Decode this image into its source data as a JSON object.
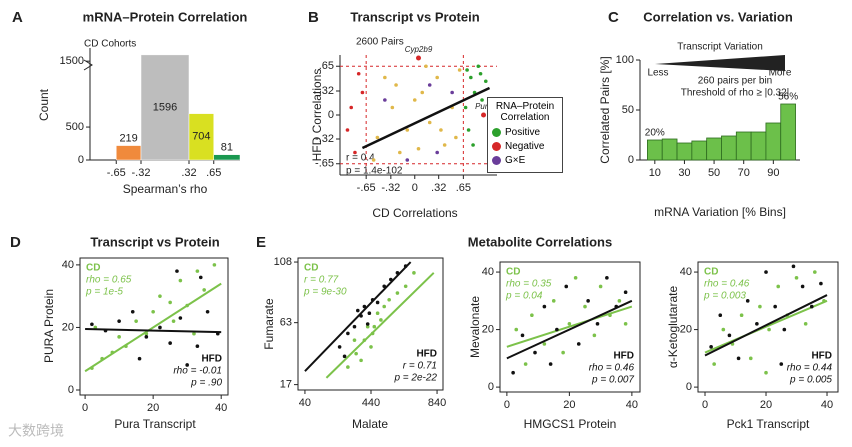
{
  "figure": {
    "panel_labels": [
      "A",
      "B",
      "C",
      "D",
      "E"
    ],
    "group_title": "Metabolite Correlations",
    "watermark": "大数跨境"
  },
  "chart_data": [
    {
      "type": "histogram",
      "title": "mRNA–Protein Correlation",
      "xlabel": "Spearman’s rho",
      "ylabel": "Count",
      "annotations": [
        "CD Cohorts"
      ],
      "bins": [
        -0.65,
        -0.32,
        0.32,
        0.65,
        1.0
      ],
      "values": [
        219,
        1596,
        704,
        81
      ],
      "colors": [
        "#f08a3c",
        "#bdbdbd",
        "#d9e021",
        "#1a9850"
      ],
      "xlim": [
        -1,
        1
      ],
      "xticks": [
        {
          "value": -0.65,
          "label": "-.65"
        },
        {
          "value": -0.32,
          "label": "-.32"
        },
        {
          "value": 0.32,
          "label": ".32"
        },
        {
          "value": 0.65,
          "label": ".65"
        }
      ],
      "ylim": [
        0,
        1700
      ],
      "yticks": [
        0,
        500,
        1500
      ]
    },
    {
      "type": "scatter",
      "title": "Transcript vs Protein",
      "xlabel": "CD Correlations",
      "ylabel": "HFD Correlations",
      "annotations": [
        "2600 Pairs",
        "r = 0.4",
        "p = 1.4e-102"
      ],
      "legend_title": "RNA–Protein Correlation",
      "point_labels": [
        {
          "text": "Cyp2b9",
          "x": 0.05,
          "y": 0.76
        },
        {
          "text": "Pura",
          "x": 0.92,
          "y": 0.0
        }
      ],
      "series": [
        {
          "name": "Positive",
          "color": "#2ca02c",
          "x": [
            0.7,
            0.8,
            0.75,
            0.68,
            0.85,
            0.9,
            0.72,
            0.95,
            0.78,
            0.88
          ],
          "values": [
            0.6,
            0.3,
            0.5,
            0.1,
            0.65,
            0.2,
            -0.2,
            0.45,
            -0.4,
            0.55
          ]
        },
        {
          "name": "Negative",
          "color": "#d62728",
          "x": [
            -0.7,
            -0.8,
            -0.75,
            -0.9,
            0.92,
            -0.85
          ],
          "values": [
            0.3,
            -0.5,
            0.55,
            -0.2,
            0.0,
            0.1
          ]
        },
        {
          "name": "G×E",
          "color": "#6a3d9a",
          "x": [
            0.3,
            -0.4,
            0.5,
            -0.1,
            0.2
          ],
          "values": [
            -0.5,
            0.2,
            0.3,
            -0.6,
            0.4
          ]
        },
        {
          "color": "#e0b84a",
          "x": [
            -0.5,
            -0.3,
            -0.1,
            0.1,
            0.3,
            0.5,
            -0.4,
            -0.2,
            0.0,
            0.2,
            0.4,
            0.6,
            -0.55,
            0.15,
            0.35,
            -0.25,
            0.55,
            0.05
          ],
          "values": [
            -0.3,
            0.1,
            -0.2,
            0.3,
            0.5,
            0.1,
            0.5,
            -0.5,
            0.2,
            -0.1,
            -0.4,
            0.6,
            -0.6,
            0.65,
            -0.2,
            0.4,
            -0.3,
            -0.45
          ]
        }
      ],
      "fit": {
        "x": [
          -0.7,
          1.0
        ],
        "y": [
          -0.44,
          0.36
        ]
      },
      "xlim": [
        -1,
        1.1
      ],
      "xticks": [
        {
          "value": -0.65,
          "label": "-.65"
        },
        {
          "value": -0.32,
          "label": "-.32"
        },
        0,
        {
          "value": 0.32,
          "label": ".32"
        },
        {
          "value": 0.65,
          "label": ".65"
        }
      ],
      "ylim": [
        -0.8,
        0.8
      ],
      "yticks": [
        {
          "value": -0.65,
          "label": "-.65"
        },
        {
          "value": -0.32,
          "label": "-.32"
        },
        0,
        {
          "value": 0.32,
          "label": ".32"
        },
        {
          "value": 0.65,
          "label": ".65"
        }
      ]
    },
    {
      "type": "histogram",
      "title": "Correlation vs. Variation",
      "xlabel": "mRNA Variation [% Bins]",
      "ylabel": "Correlated Pairs [%]",
      "annotations": [
        "Transcript Variation",
        "Less",
        "More",
        "260 pairs per bin",
        "Threshold of rho ≥ |0.32|"
      ],
      "bins": [
        5,
        15,
        25,
        35,
        45,
        55,
        65,
        75,
        85,
        95,
        105
      ],
      "values": [
        20,
        21,
        17,
        19,
        22,
        24,
        28,
        28,
        37,
        56
      ],
      "value_labels": [
        "20%",
        null,
        null,
        null,
        null,
        null,
        null,
        null,
        null,
        "56%"
      ],
      "color": "#6cc04a",
      "xlim": [
        0,
        108
      ],
      "xticks": [
        10,
        30,
        50,
        70,
        90
      ],
      "ylim": [
        0,
        100
      ],
      "yticks": [
        0,
        50,
        100
      ]
    },
    {
      "type": "scatter",
      "title": "Transcript vs Protein",
      "xlabel": "Pura Transcript",
      "ylabel": "PURA Protein",
      "series": [
        {
          "name": "CD",
          "color": "#7cc24a",
          "stats": [
            "CD",
            "rho = 0.65",
            "p = 1e-5"
          ],
          "x": [
            2,
            5,
            8,
            10,
            12,
            15,
            18,
            20,
            22,
            25,
            28,
            30,
            33,
            35,
            38,
            3,
            26,
            32
          ],
          "values": [
            7,
            10,
            12,
            17,
            14,
            22,
            18,
            25,
            30,
            28,
            35,
            27,
            38,
            32,
            40,
            20,
            22,
            18
          ],
          "fit": {
            "x": [
              0,
              40
            ],
            "y": [
              6,
              34
            ]
          }
        },
        {
          "name": "HFD",
          "color": "#111111",
          "stats": [
            "HFD",
            "rho = -0.01",
            "p = .90"
          ],
          "x": [
            2,
            6,
            10,
            14,
            18,
            22,
            25,
            28,
            30,
            33,
            36,
            39,
            16,
            34,
            27
          ],
          "values": [
            21,
            19,
            22,
            25,
            17,
            20,
            15,
            23,
            8,
            14,
            25,
            18,
            10,
            36,
            38
          ],
          "fit": {
            "x": [
              0,
              40
            ],
            "y": [
              19.5,
              18.5
            ]
          }
        }
      ],
      "xlim": [
        -1.5,
        42
      ],
      "xticks": [
        0,
        20,
        40
      ],
      "ylim": [
        -1.6,
        42.2
      ],
      "yticks": [
        0,
        20,
        40
      ]
    },
    {
      "type": "scatter",
      "xlabel": "Malate",
      "ylabel": "Fumarate",
      "series": [
        {
          "name": "CD",
          "color": "#7cc24a",
          "stats": [
            "CD",
            "r = 0.77",
            "p = 9e-30"
          ],
          "x": [
            300,
            350,
            400,
            420,
            450,
            480,
            500,
            550,
            600,
            650,
            700,
            380,
            440,
            520,
            340,
            460
          ],
          "values": [
            30,
            40,
            50,
            60,
            55,
            70,
            65,
            80,
            85,
            90,
            100,
            35,
            45,
            75,
            50,
            60
          ],
          "fit": {
            "x": [
              170,
              820
            ],
            "y": [
              22,
              100
            ]
          }
        },
        {
          "name": "HFD",
          "color": "#111111",
          "stats": [
            "HFD",
            "r = 0.71",
            "p = 2e-22"
          ],
          "x": [
            250,
            300,
            340,
            380,
            400,
            420,
            450,
            480,
            520,
            560,
            600,
            650,
            360,
            430,
            280
          ],
          "values": [
            45,
            55,
            60,
            68,
            75,
            62,
            80,
            78,
            90,
            95,
            100,
            105,
            72,
            70,
            38
          ],
          "fit": {
            "x": [
              40,
              680
            ],
            "y": [
              27,
              108
            ]
          }
        }
      ],
      "xlim": [
        -2,
        876
      ],
      "xticks": [
        40,
        440,
        840
      ],
      "ylim": [
        13,
        111
      ],
      "yticks": [
        17,
        63,
        108
      ]
    },
    {
      "type": "scatter",
      "xlabel": "HMGCS1 Protein",
      "ylabel": "Mevalonate",
      "series": [
        {
          "name": "CD",
          "color": "#7cc24a",
          "stats": [
            "CD",
            "rho = 0.35",
            "p = 0.04"
          ],
          "x": [
            3,
            6,
            8,
            12,
            15,
            18,
            20,
            25,
            28,
            30,
            33,
            36,
            38,
            22
          ],
          "values": [
            20,
            8,
            25,
            15,
            30,
            12,
            22,
            28,
            18,
            35,
            25,
            30,
            22,
            38
          ],
          "fit": {
            "x": [
              0,
              40
            ],
            "y": [
              14,
              28
            ]
          }
        },
        {
          "name": "HFD",
          "color": "#111111",
          "stats": [
            "HFD",
            "rho = 0.46",
            "p = 0.007"
          ],
          "x": [
            2,
            5,
            9,
            12,
            16,
            19,
            23,
            26,
            29,
            32,
            35,
            38,
            14
          ],
          "values": [
            5,
            18,
            12,
            28,
            20,
            35,
            15,
            30,
            22,
            38,
            28,
            33,
            8
          ],
          "fit": {
            "x": [
              0,
              40
            ],
            "y": [
              10,
              30
            ]
          }
        }
      ],
      "xlim": [
        -2.2,
        42.6
      ],
      "xticks": [
        0,
        20,
        40
      ],
      "ylim": [
        -1.7,
        43.5
      ],
      "yticks": [
        0,
        20,
        40
      ]
    },
    {
      "type": "scatter",
      "xlabel": "Pck1 Transcript",
      "ylabel": "α-Ketoglutarate",
      "series": [
        {
          "name": "CD",
          "color": "#7cc24a",
          "stats": [
            "CD",
            "rho = 0.46",
            "p = 0.003"
          ],
          "x": [
            3,
            6,
            9,
            12,
            15,
            18,
            21,
            24,
            27,
            30,
            33,
            36,
            39,
            20
          ],
          "values": [
            8,
            20,
            15,
            25,
            10,
            28,
            20,
            35,
            25,
            38,
            22,
            40,
            30,
            5
          ],
          "fit": {
            "x": [
              0,
              40
            ],
            "y": [
              12,
              30
            ]
          }
        },
        {
          "name": "HFD",
          "color": "#111111",
          "stats": [
            "HFD",
            "rho = 0.44",
            "p = 0.005"
          ],
          "x": [
            2,
            5,
            8,
            11,
            14,
            17,
            20,
            23,
            26,
            29,
            32,
            35,
            38,
            25
          ],
          "values": [
            14,
            25,
            18,
            10,
            30,
            22,
            40,
            28,
            20,
            42,
            35,
            28,
            36,
            8
          ],
          "fit": {
            "x": [
              0,
              40
            ],
            "y": [
              11,
              32
            ]
          }
        }
      ],
      "xlim": [
        -2.3,
        43.6
      ],
      "xticks": [
        0,
        20,
        40
      ],
      "ylim": [
        -1.7,
        43.5
      ],
      "yticks": [
        0,
        20,
        40
      ]
    }
  ]
}
